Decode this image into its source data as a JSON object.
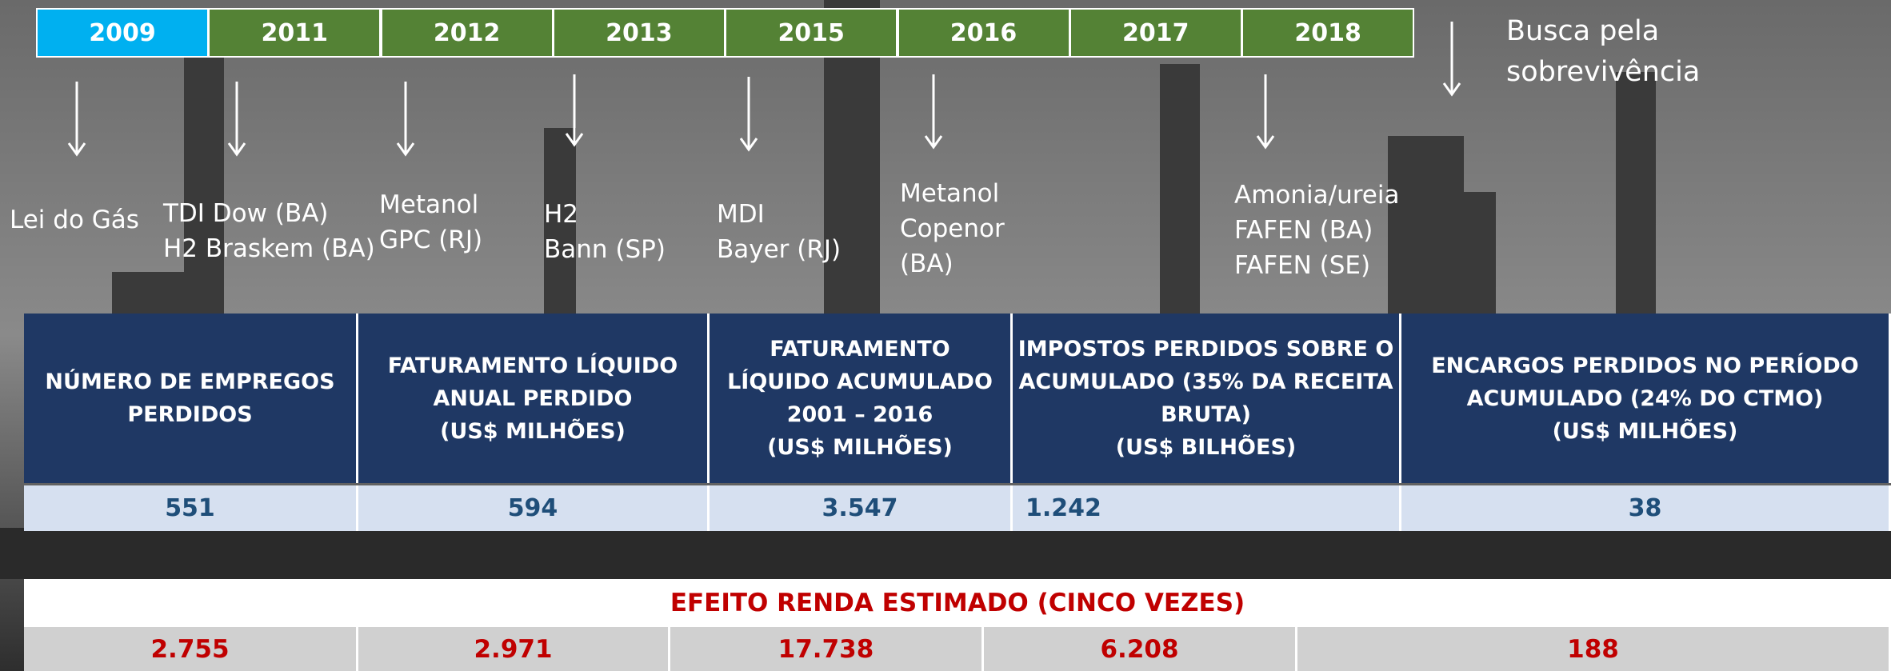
{
  "timeline": {
    "years": [
      "2009",
      "2011",
      "2012",
      "2013",
      "2015",
      "2016",
      "2017",
      "2018"
    ]
  },
  "events": [
    {
      "lines": [
        "Lei do Gás"
      ]
    },
    {
      "lines": [
        "TDI Dow (BA)",
        "H2 Braskem (BA)"
      ]
    },
    {
      "lines": [
        "Metanol",
        "GPC (RJ)"
      ]
    },
    {
      "lines": [
        "H2",
        "Bann (SP)"
      ]
    },
    {
      "lines": [
        "MDI",
        "Bayer (RJ)"
      ]
    },
    {
      "lines": [
        "Metanol",
        "Copenor",
        "(BA)"
      ]
    },
    {
      "lines": [
        "Amonia/ureia",
        "FAFEN (BA)",
        "FAFEN (SE)"
      ]
    },
    {
      "lines": [
        "Busca pela",
        "sobrevivência"
      ]
    }
  ],
  "table": {
    "headers": [
      [
        "NÚMERO DE EMPREGOS",
        "PERDIDOS"
      ],
      [
        "FATURAMENTO LÍQUIDO",
        "ANUAL PERDIDO",
        "(US$ MILHÕES)"
      ],
      [
        "FATURAMENTO",
        "LÍQUIDO ACUMULADO",
        "2001 – 2016",
        "(US$ MILHÕES)"
      ],
      [
        "IMPOSTOS PERDIDOS SOBRE O",
        "ACUMULADO (35% DA RECEITA",
        "BRUTA)",
        "(US$ BILHÕES)"
      ],
      [
        "ENCARGOS PERDIDOS NO PERÍODO",
        "ACUMULADO (24% DO CTMO)",
        "(US$ MILHÕES)"
      ]
    ],
    "values": [
      "551",
      "594",
      "3.547",
      "1.242",
      "38"
    ]
  },
  "effect": {
    "title": "EFEITO RENDA ESTIMADO (CINCO VEZES)",
    "values": [
      "2.755",
      "2.971",
      "17.738",
      "6.208",
      "188"
    ]
  }
}
